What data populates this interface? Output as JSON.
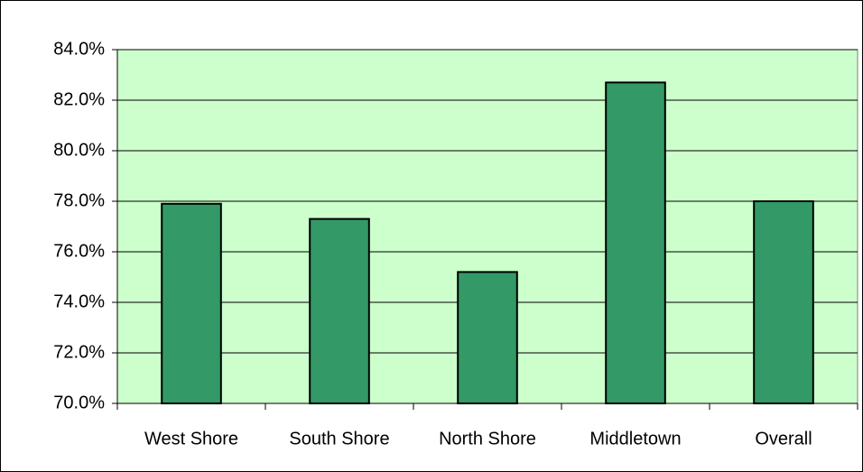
{
  "chart_data": {
    "type": "bar",
    "categories": [
      "West Shore",
      "South Shore",
      "North Shore",
      "Middletown",
      "Overall"
    ],
    "values": [
      77.9,
      77.3,
      75.2,
      82.7,
      78.0
    ],
    "color": "#339966",
    "ylim": [
      70,
      84
    ],
    "yticks": [
      {
        "value": 70,
        "label": "70.0%"
      },
      {
        "value": 72,
        "label": "72.0%"
      },
      {
        "value": 74,
        "label": "74.0%"
      },
      {
        "value": 76,
        "label": "76.0%"
      },
      {
        "value": 78,
        "label": "78.0%"
      },
      {
        "value": 80,
        "label": "80.0%"
      },
      {
        "value": 82,
        "label": "82.0%"
      },
      {
        "value": 84,
        "label": "84.0%"
      }
    ],
    "grid": true
  }
}
